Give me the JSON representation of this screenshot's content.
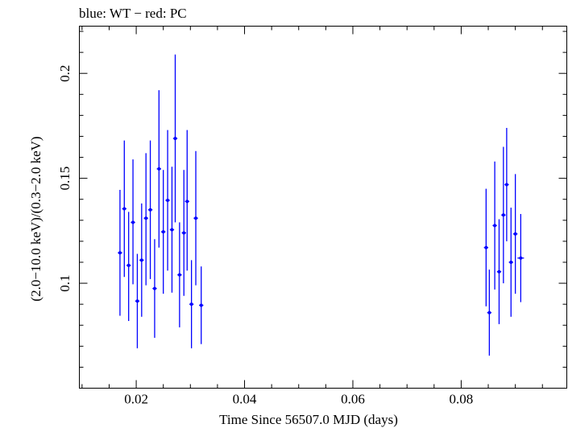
{
  "chart_data": {
    "type": "scatter",
    "title": "blue: WT − red: PC",
    "xlabel": "Time Since 56507.0 MJD (days)",
    "ylabel": "(2.0−10.0 keV)/(0.3−2.0 keV)",
    "xlim": [
      0.0095,
      0.0995
    ],
    "ylim": [
      0.05,
      0.2225
    ],
    "xticks": [
      0.02,
      0.04,
      0.06,
      0.08
    ],
    "xtick_labels": [
      "0.02",
      "0.04",
      "0.06",
      "0.08"
    ],
    "yticks": [
      0.1,
      0.15,
      0.2
    ],
    "ytick_labels": [
      "0.1",
      "0.15",
      "0.2"
    ],
    "grid": false,
    "legend": "none",
    "series": [
      {
        "color": "#0000ff",
        "points": [
          {
            "x": 0.017,
            "y": 0.1145,
            "xerr": 0.0004,
            "ylo": 0.0845,
            "yhi": 0.1445
          },
          {
            "x": 0.0178,
            "y": 0.1355,
            "xerr": 0.0004,
            "ylo": 0.103,
            "yhi": 0.168
          },
          {
            "x": 0.0186,
            "y": 0.1085,
            "xerr": 0.0004,
            "ylo": 0.082,
            "yhi": 0.134
          },
          {
            "x": 0.0194,
            "y": 0.129,
            "xerr": 0.0004,
            "ylo": 0.0995,
            "yhi": 0.159
          },
          {
            "x": 0.0202,
            "y": 0.0915,
            "xerr": 0.0004,
            "ylo": 0.069,
            "yhi": 0.114
          },
          {
            "x": 0.021,
            "y": 0.111,
            "xerr": 0.0004,
            "ylo": 0.084,
            "yhi": 0.138
          },
          {
            "x": 0.0218,
            "y": 0.131,
            "xerr": 0.0004,
            "ylo": 0.099,
            "yhi": 0.162
          },
          {
            "x": 0.0226,
            "y": 0.135,
            "xerr": 0.0004,
            "ylo": 0.102,
            "yhi": 0.168
          },
          {
            "x": 0.0234,
            "y": 0.0975,
            "xerr": 0.0004,
            "ylo": 0.074,
            "yhi": 0.121
          },
          {
            "x": 0.0242,
            "y": 0.1545,
            "xerr": 0.0004,
            "ylo": 0.117,
            "yhi": 0.192
          },
          {
            "x": 0.025,
            "y": 0.1245,
            "xerr": 0.0004,
            "ylo": 0.095,
            "yhi": 0.154
          },
          {
            "x": 0.0258,
            "y": 0.1395,
            "xerr": 0.0004,
            "ylo": 0.106,
            "yhi": 0.173
          },
          {
            "x": 0.0266,
            "y": 0.1255,
            "xerr": 0.0004,
            "ylo": 0.0955,
            "yhi": 0.1555
          },
          {
            "x": 0.0272,
            "y": 0.169,
            "xerr": 0.0004,
            "ylo": 0.129,
            "yhi": 0.209
          },
          {
            "x": 0.028,
            "y": 0.104,
            "xerr": 0.0004,
            "ylo": 0.079,
            "yhi": 0.129
          },
          {
            "x": 0.0288,
            "y": 0.124,
            "xerr": 0.0004,
            "ylo": 0.094,
            "yhi": 0.154
          },
          {
            "x": 0.0294,
            "y": 0.139,
            "xerr": 0.0004,
            "ylo": 0.106,
            "yhi": 0.173
          },
          {
            "x": 0.0302,
            "y": 0.09,
            "xerr": 0.0004,
            "ylo": 0.069,
            "yhi": 0.111
          },
          {
            "x": 0.031,
            "y": 0.131,
            "xerr": 0.0004,
            "ylo": 0.099,
            "yhi": 0.163
          },
          {
            "x": 0.032,
            "y": 0.0895,
            "xerr": 0.0004,
            "ylo": 0.071,
            "yhi": 0.108
          },
          {
            "x": 0.0846,
            "y": 0.117,
            "xerr": 0.0004,
            "ylo": 0.089,
            "yhi": 0.145
          },
          {
            "x": 0.0852,
            "y": 0.086,
            "xerr": 0.0004,
            "ylo": 0.0655,
            "yhi": 0.1065
          },
          {
            "x": 0.0862,
            "y": 0.1275,
            "xerr": 0.0004,
            "ylo": 0.097,
            "yhi": 0.158
          },
          {
            "x": 0.087,
            "y": 0.1055,
            "xerr": 0.0004,
            "ylo": 0.0805,
            "yhi": 0.1305
          },
          {
            "x": 0.0878,
            "y": 0.1325,
            "xerr": 0.0004,
            "ylo": 0.1,
            "yhi": 0.165
          },
          {
            "x": 0.0884,
            "y": 0.147,
            "xerr": 0.0004,
            "ylo": 0.12,
            "yhi": 0.174
          },
          {
            "x": 0.0892,
            "y": 0.11,
            "xerr": 0.0004,
            "ylo": 0.084,
            "yhi": 0.136
          },
          {
            "x": 0.09,
            "y": 0.1235,
            "xerr": 0.0004,
            "ylo": 0.095,
            "yhi": 0.152
          },
          {
            "x": 0.091,
            "y": 0.112,
            "xerr": 0.0006,
            "ylo": 0.091,
            "yhi": 0.133
          }
        ]
      }
    ]
  }
}
